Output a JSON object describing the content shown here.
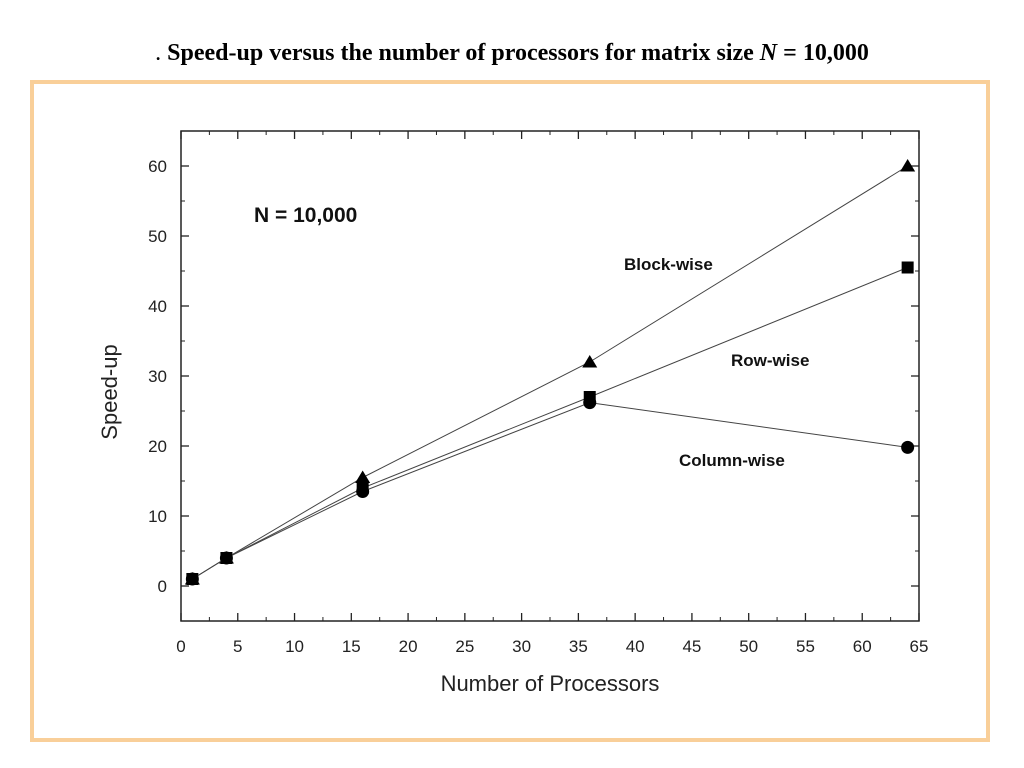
{
  "page": {
    "title_prefix": ".",
    "title_part1": "Speed-up versus the number of processors for matrix size ",
    "title_var": "N",
    "title_part2": " = 10,000",
    "frame_color": "#f9cf99"
  },
  "chart_data": {
    "type": "line",
    "title": "",
    "annotation": "N = 10,000",
    "xlabel": "Number of Processors",
    "ylabel": "Speed-up",
    "xlim": [
      0,
      65
    ],
    "ylim": [
      -5,
      65
    ],
    "xticks": [
      0,
      5,
      10,
      15,
      20,
      25,
      30,
      35,
      40,
      45,
      50,
      55,
      60,
      65
    ],
    "yticks": [
      0,
      10,
      20,
      30,
      40,
      50,
      60
    ],
    "grid": false,
    "series": [
      {
        "name": "Block-wise",
        "marker": "triangle",
        "x": [
          1,
          4,
          16,
          36,
          64
        ],
        "y": [
          1,
          4,
          15.5,
          32,
          60
        ]
      },
      {
        "name": "Row-wise",
        "marker": "square",
        "x": [
          1,
          4,
          16,
          36,
          64
        ],
        "y": [
          1,
          4,
          14,
          27,
          45.5
        ]
      },
      {
        "name": "Column-wise",
        "marker": "circle",
        "x": [
          1,
          4,
          16,
          36,
          64
        ],
        "y": [
          1,
          4,
          13.5,
          26.2,
          19.8
        ]
      }
    ]
  }
}
